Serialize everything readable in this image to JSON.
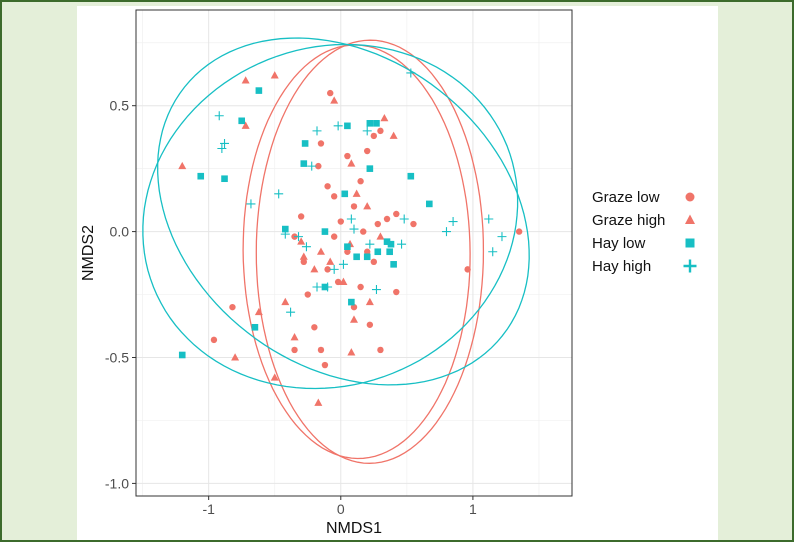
{
  "chart_data": {
    "type": "scatter",
    "xlabel": "NMDS1",
    "ylabel": "NMDS2",
    "xlim": [
      -1.55,
      1.75
    ],
    "ylim": [
      -1.05,
      0.88
    ],
    "x_ticks": [
      -1,
      0,
      1
    ],
    "x_tick_labels": [
      "-1",
      "0",
      "1"
    ],
    "y_ticks": [
      -1.0,
      -0.5,
      0.0,
      0.5
    ],
    "y_tick_labels": [
      "-1.0",
      "-0.5",
      "0.0",
      "0.5"
    ],
    "grid": true,
    "legend_position": "right",
    "colors": {
      "graze": "#f07469",
      "hay": "#17bfc4"
    },
    "series": [
      {
        "name": "Graze low",
        "marker": "circle",
        "color": "#f07469",
        "points": [
          [
            1.35,
            0.0
          ],
          [
            0.96,
            -0.15
          ],
          [
            0.42,
            0.07
          ],
          [
            0.55,
            0.03
          ],
          [
            0.3,
            0.4
          ],
          [
            0.25,
            0.38
          ],
          [
            0.2,
            0.32
          ],
          [
            0.15,
            0.2
          ],
          [
            0.05,
            0.3
          ],
          [
            -0.08,
            0.55
          ],
          [
            -0.15,
            0.35
          ],
          [
            -0.17,
            0.26
          ],
          [
            -0.1,
            0.18
          ],
          [
            -0.05,
            0.14
          ],
          [
            0.1,
            0.1
          ],
          [
            0.17,
            0.0
          ],
          [
            0.28,
            0.03
          ],
          [
            0.35,
            0.05
          ],
          [
            -0.3,
            0.06
          ],
          [
            -0.35,
            -0.02
          ],
          [
            -0.28,
            -0.12
          ],
          [
            -0.25,
            -0.25
          ],
          [
            -0.2,
            -0.38
          ],
          [
            -0.35,
            -0.47
          ],
          [
            -0.15,
            -0.47
          ],
          [
            -0.12,
            -0.53
          ],
          [
            0.1,
            -0.3
          ],
          [
            0.22,
            -0.37
          ],
          [
            0.3,
            -0.47
          ],
          [
            0.42,
            -0.24
          ],
          [
            0.15,
            -0.22
          ],
          [
            -0.1,
            -0.15
          ],
          [
            0.05,
            -0.08
          ],
          [
            -0.05,
            -0.02
          ],
          [
            0.2,
            -0.08
          ],
          [
            0.25,
            -0.12
          ],
          [
            0.0,
            0.04
          ],
          [
            -0.96,
            -0.43
          ],
          [
            -0.82,
            -0.3
          ],
          [
            -0.02,
            -0.2
          ]
        ]
      },
      {
        "name": "Graze high",
        "marker": "triangle",
        "color": "#f07469",
        "points": [
          [
            -1.2,
            0.26
          ],
          [
            -0.72,
            0.42
          ],
          [
            -0.5,
            0.62
          ],
          [
            -0.72,
            0.6
          ],
          [
            0.33,
            0.45
          ],
          [
            0.4,
            0.38
          ],
          [
            -0.05,
            0.52
          ],
          [
            0.12,
            0.15
          ],
          [
            0.08,
            0.27
          ],
          [
            0.2,
            0.1
          ],
          [
            0.07,
            -0.05
          ],
          [
            -0.3,
            -0.04
          ],
          [
            -0.28,
            -0.1
          ],
          [
            -0.2,
            -0.15
          ],
          [
            -0.08,
            -0.12
          ],
          [
            0.1,
            -0.35
          ],
          [
            -0.42,
            -0.28
          ],
          [
            -0.62,
            -0.32
          ],
          [
            -0.35,
            -0.42
          ],
          [
            -0.5,
            -0.58
          ],
          [
            0.08,
            -0.48
          ],
          [
            -0.8,
            -0.5
          ],
          [
            -0.17,
            -0.68
          ],
          [
            0.02,
            -0.2
          ],
          [
            0.3,
            -0.02
          ],
          [
            -0.15,
            -0.08
          ],
          [
            0.22,
            -0.28
          ]
        ]
      },
      {
        "name": "Hay low",
        "marker": "square",
        "color": "#17bfc4",
        "points": [
          [
            -1.2,
            -0.49
          ],
          [
            -1.06,
            0.22
          ],
          [
            -0.88,
            0.21
          ],
          [
            -0.75,
            0.44
          ],
          [
            -0.62,
            0.56
          ],
          [
            -0.65,
            -0.38
          ],
          [
            -0.42,
            0.01
          ],
          [
            -0.28,
            0.27
          ],
          [
            -0.27,
            0.35
          ],
          [
            -0.12,
            0.0
          ],
          [
            0.05,
            0.42
          ],
          [
            0.03,
            0.15
          ],
          [
            0.22,
            0.43
          ],
          [
            0.22,
            0.25
          ],
          [
            0.27,
            0.43
          ],
          [
            0.53,
            0.22
          ],
          [
            0.67,
            0.11
          ],
          [
            0.35,
            -0.04
          ],
          [
            0.38,
            -0.05
          ],
          [
            0.37,
            -0.08
          ],
          [
            0.28,
            -0.08
          ],
          [
            0.4,
            -0.13
          ],
          [
            0.05,
            -0.06
          ],
          [
            0.08,
            -0.28
          ],
          [
            -0.12,
            -0.22
          ],
          [
            0.12,
            -0.1
          ],
          [
            0.2,
            -0.1
          ]
        ]
      },
      {
        "name": "Hay high",
        "marker": "plus",
        "color": "#17bfc4",
        "points": [
          [
            -0.92,
            0.46
          ],
          [
            -0.88,
            0.35
          ],
          [
            -0.9,
            0.33
          ],
          [
            -0.68,
            0.11
          ],
          [
            -0.47,
            0.15
          ],
          [
            -0.42,
            -0.01
          ],
          [
            -0.32,
            -0.02
          ],
          [
            -0.22,
            0.26
          ],
          [
            -0.18,
            0.4
          ],
          [
            -0.02,
            0.42
          ],
          [
            0.08,
            0.05
          ],
          [
            0.1,
            0.01
          ],
          [
            0.48,
            0.05
          ],
          [
            0.53,
            0.63
          ],
          [
            0.85,
            0.04
          ],
          [
            0.8,
            0.0
          ],
          [
            1.12,
            0.05
          ],
          [
            1.15,
            -0.08
          ],
          [
            1.22,
            -0.02
          ],
          [
            0.46,
            -0.05
          ],
          [
            0.22,
            -0.05
          ],
          [
            0.02,
            -0.13
          ],
          [
            -0.05,
            -0.15
          ],
          [
            -0.1,
            -0.22
          ],
          [
            -0.18,
            -0.22
          ],
          [
            0.27,
            -0.23
          ],
          [
            -0.38,
            -0.32
          ],
          [
            -0.26,
            -0.06
          ],
          [
            0.2,
            0.4
          ]
        ]
      }
    ],
    "ellipses": [
      {
        "group": "Graze low",
        "color": "#f07469",
        "cx": 0.22,
        "cy": -0.08,
        "rx": 0.84,
        "ry": 0.86,
        "angle_deg": 96
      },
      {
        "group": "Graze high",
        "color": "#f07469",
        "cx": 0.12,
        "cy": -0.08,
        "rx": 0.82,
        "ry": 0.86,
        "angle_deg": 81
      },
      {
        "group": "Hay low",
        "color": "#17bfc4",
        "cx": 0.02,
        "cy": 0.08,
        "rx": 1.42,
        "ry": 0.66,
        "angle_deg": -9
      },
      {
        "group": "Hay high",
        "color": "#17bfc4",
        "cx": -0.08,
        "cy": 0.06,
        "rx": 1.42,
        "ry": 0.68,
        "angle_deg": 3
      }
    ]
  }
}
